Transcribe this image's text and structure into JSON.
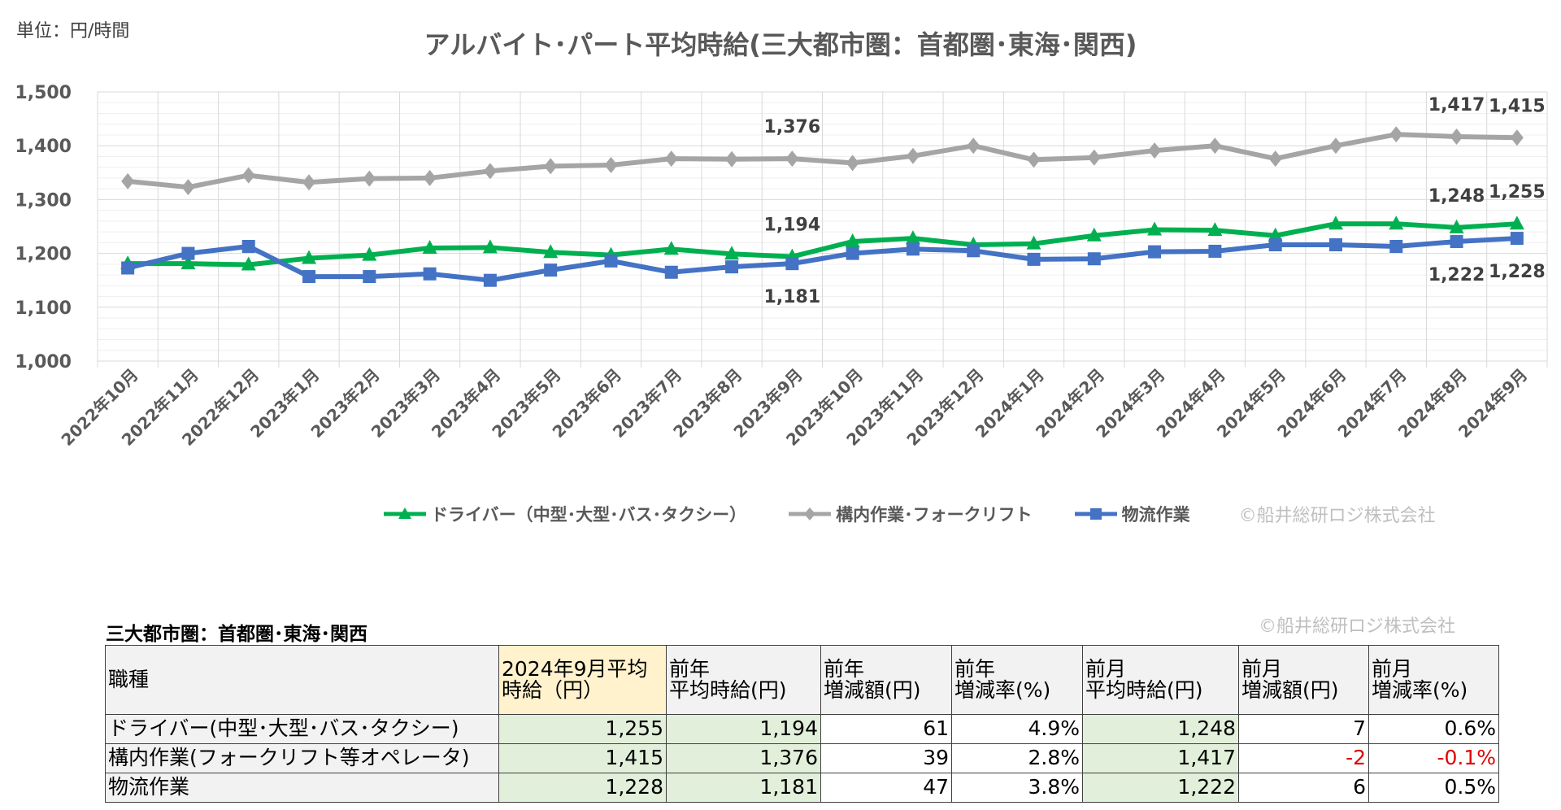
{
  "unit_label": "単位：円/時間",
  "chart_data": {
    "type": "line",
    "title": "アルバイト･パート平均時給(三大都市圏：首都圏･東海･関西)",
    "ylabel": "",
    "ylim": [
      1000,
      1500
    ],
    "yticks": [
      "1,000",
      "1,100",
      "1,200",
      "1,300",
      "1,400",
      "1,500"
    ],
    "grid": true,
    "legend_placement": "bottom",
    "categories": [
      "2022年10月",
      "2022年11月",
      "2022年12月",
      "2023年1月",
      "2023年2月",
      "2023年3月",
      "2023年4月",
      "2023年5月",
      "2023年6月",
      "2023年7月",
      "2023年8月",
      "2023年9月",
      "2023年10月",
      "2023年11月",
      "2023年12月",
      "2024年1月",
      "2024年2月",
      "2024年3月",
      "2024年4月",
      "2024年5月",
      "2024年6月",
      "2024年7月",
      "2024年8月",
      "2024年9月"
    ],
    "series": [
      {
        "name": "ドライバー（中型･大型･バス･タクシー）",
        "color": "#00b050",
        "marker": "triangle",
        "values": [
          1181,
          1181,
          1179,
          1191,
          1197,
          1210,
          1211,
          1202,
          1197,
          1208,
          1199,
          1194,
          1222,
          1228,
          1216,
          1218,
          1233,
          1244,
          1243,
          1233,
          1255,
          1255,
          1248,
          1255
        ],
        "labels": {
          "11": "1,194",
          "22": "1,248",
          "23": "1,255"
        },
        "label_pos": "above"
      },
      {
        "name": "構内作業･フォークリフト",
        "color": "#a5a5a5",
        "marker": "diamond",
        "values": [
          1334,
          1323,
          1345,
          1332,
          1339,
          1340,
          1353,
          1362,
          1364,
          1376,
          1375,
          1376,
          1368,
          1381,
          1400,
          1374,
          1378,
          1391,
          1400,
          1376,
          1400,
          1421,
          1417,
          1415
        ],
        "labels": {
          "11": "1,376",
          "22": "1,417",
          "23": "1,415"
        },
        "label_pos": "above"
      },
      {
        "name": "物流作業",
        "color": "#4472c4",
        "marker": "square",
        "values": [
          1173,
          1200,
          1213,
          1157,
          1157,
          1162,
          1150,
          1169,
          1186,
          1165,
          1175,
          1181,
          1200,
          1208,
          1205,
          1189,
          1190,
          1203,
          1204,
          1216,
          1216,
          1213,
          1222,
          1228
        ],
        "labels": {
          "11": "1,181",
          "22": "1,222",
          "23": "1,228"
        },
        "label_pos": "below"
      }
    ]
  },
  "copyright": "©船井総研ロジ株式会社",
  "table": {
    "title": "三大都市圏：首都圏･東海･関西",
    "headers": [
      "職種",
      "2024年9月平均\n時給（円）",
      "前年\n平均時給(円)",
      "前年\n増減額(円)",
      "前年\n増減率(%)",
      "前月\n平均時給(円)",
      "前月\n増減額(円)",
      "前月\n増減率(%)"
    ],
    "rows": [
      [
        "ドライバー(中型･大型･バス･タクシー)",
        "1,255",
        "1,194",
        "61",
        "4.9%",
        "1,248",
        "7",
        "0.6%"
      ],
      [
        "構内作業(フォークリフト等オペレータ)",
        "1,415",
        "1,376",
        "39",
        "2.8%",
        "1,417",
        "-2",
        "-0.1%"
      ],
      [
        "物流作業",
        "1,228",
        "1,181",
        "47",
        "3.8%",
        "1,222",
        "6",
        "0.5%"
      ]
    ],
    "negative_color": "#e00000"
  }
}
